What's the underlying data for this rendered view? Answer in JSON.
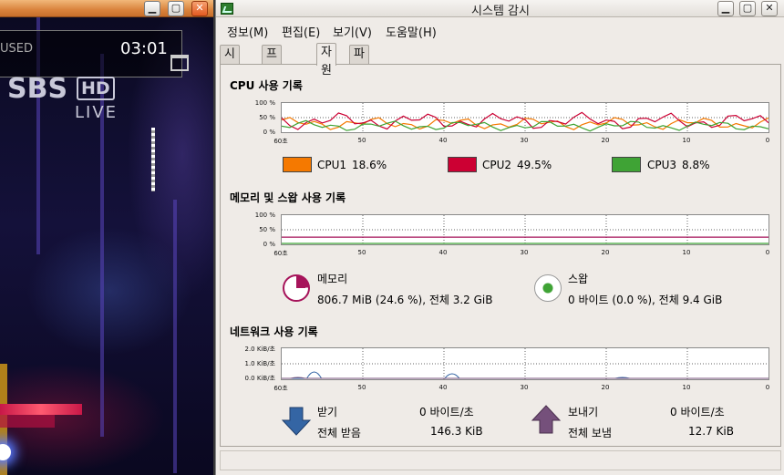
{
  "video_player": {
    "status_text": "USED",
    "time": "03:01",
    "broadcaster": "SBS",
    "hd_badge": "HD",
    "live_label": "LIVE"
  },
  "window": {
    "title": "시스템 감시"
  },
  "menu": [
    "정보(M)",
    "편집(E)",
    "보기(V)",
    "도움말(H)"
  ],
  "tabs": [
    "시스템",
    "프로세스",
    "자원",
    "파일시스템"
  ],
  "active_tab": "자원",
  "cpu": {
    "title": "CPU 사용 기록",
    "y_ticks": [
      "100 %",
      "50 %",
      "0 %"
    ],
    "x_ticks": [
      "60초",
      "50",
      "40",
      "30",
      "20",
      "10",
      "0"
    ],
    "legend": [
      {
        "label": "CPU1",
        "value": "18.6%",
        "color": "#f57900"
      },
      {
        "label": "CPU2",
        "value": "49.5%",
        "color": "#cc0033"
      },
      {
        "label": "CPU3",
        "value": "8.8%",
        "color": "#3fa335"
      }
    ]
  },
  "memory": {
    "title": "메모리 및 스왑 사용 기록",
    "y_ticks": [
      "100 %",
      "50 %",
      "0 %"
    ],
    "x_ticks": [
      "60초",
      "50",
      "40",
      "30",
      "20",
      "10",
      "0"
    ],
    "mem_label": "메모리",
    "mem_value": "806.7 MiB (24.6 %), 전체 3.2 GiB",
    "mem_fraction": 0.246,
    "mem_color": "#a6135a",
    "swap_label": "스왑",
    "swap_value": "0 바이트 (0.0 %), 전체 9.4 GiB",
    "swap_fraction": 0.0,
    "swap_color": "#3fa335"
  },
  "network": {
    "title": "네트워크 사용 기록",
    "y_ticks": [
      "2.0 KiB/초",
      "1.0 KiB/초",
      "0.0 KiB/초"
    ],
    "x_ticks": [
      "60초",
      "50",
      "40",
      "30",
      "20",
      "10",
      "0"
    ],
    "recv_label": "받기",
    "recv_rate": "0 바이트/초",
    "recv_total_label": "전체 받음",
    "recv_total": "146.3 KiB",
    "recv_color": "#3465a4",
    "send_label": "보내기",
    "send_rate": "0 바이트/초",
    "send_total_label": "전체 보냄",
    "send_total": "12.7 KiB",
    "send_color": "#75507b"
  }
}
